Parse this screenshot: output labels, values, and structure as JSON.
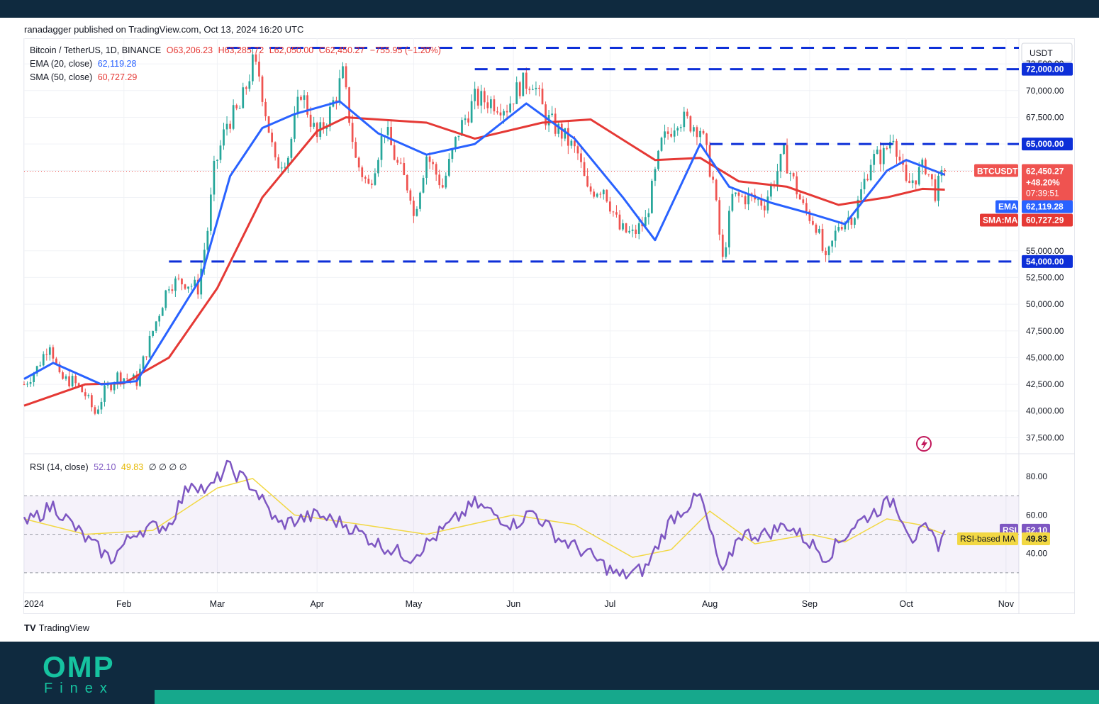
{
  "publisher_line": "ranadagger published on TradingView.com, Oct 13, 2024 16:20 UTC",
  "branding": {
    "tradingview": "TradingView",
    "omp": "OMP",
    "finex": "Finex"
  },
  "legend": {
    "symbol": "Bitcoin / TetherUS, 1D, BINANCE",
    "open": "O63,206.23",
    "high": "H63,285.72",
    "low": "L62,050.00",
    "close": "C62,450.27",
    "change": "−755.95 (−1.20%)",
    "ema_label": "EMA (20, close)",
    "ema_value": "62,119.28",
    "sma_label": "SMA (50, close)",
    "sma_value": "60,727.29",
    "rsi_label": "RSI (14, close)",
    "rsi_value": "52.10",
    "rsi_ma_value": "49.83",
    "rsi_extra": "∅ ∅ ∅ ∅"
  },
  "currency": "USDT",
  "colors": {
    "up": "#26a69a",
    "down": "#ef5350",
    "ema": "#2962ff",
    "sma": "#e53935",
    "level": "#0d2fd8",
    "rsi": "#7e57c2",
    "rsi_ma": "#f2d843"
  },
  "price_axis": {
    "ticks": [
      37500,
      40000,
      42500,
      45000,
      47500,
      50000,
      52500,
      55000,
      67500,
      70000
    ],
    "tick_labels": [
      "37,500.00",
      "40,000.00",
      "42,500.00",
      "45,000.00",
      "47,500.00",
      "50,000.00",
      "52,500.00",
      "55,000.00",
      "67,500.00",
      "70,000.00"
    ],
    "partial_top_label": "72,500.00"
  },
  "badges": {
    "level_72000": "72,000.00",
    "level_65000": "65,000.00",
    "level_54000": "54,000.00",
    "symbol": "BTCUSDT",
    "price": "62,450.27",
    "change_pct": "+48.20%",
    "countdown": "07:39:51",
    "ema_tag": "EMA",
    "ema_value": "62,119.28",
    "sma_tag": "SMA:MA",
    "sma_value": "60,727.29",
    "rsi_tag": "RSI",
    "rsi_value": "52.10",
    "rsi_ma_tag": "RSI-based MA",
    "rsi_ma_value": "49.83"
  },
  "rsi_axis": {
    "ticks": [
      40,
      60,
      80
    ],
    "tick_labels": [
      "40.00",
      "60.00",
      "80.00"
    ]
  },
  "time_axis": {
    "labels": [
      "2024",
      "Feb",
      "Mar",
      "Apr",
      "May",
      "Jun",
      "Jul",
      "Aug",
      "Sep",
      "Oct",
      "Nov"
    ]
  },
  "chart_data": {
    "type": "candlestick",
    "title": "Bitcoin / TetherUS, 1D, BINANCE",
    "x_range": [
      "2024-01-01",
      "2024-11-05"
    ],
    "price_range": [
      36000,
      74500
    ],
    "rsi_range": [
      20,
      90
    ],
    "horizontal_levels": [
      72000,
      65000,
      54000
    ],
    "last_price": 62450.27,
    "close_approx": {
      "dates": [
        "2024-01-01",
        "2024-01-05",
        "2024-01-09",
        "2024-01-12",
        "2024-01-16",
        "2024-01-20",
        "2024-01-23",
        "2024-01-26",
        "2024-01-30",
        "2024-02-05",
        "2024-02-10",
        "2024-02-15",
        "2024-02-20",
        "2024-02-24",
        "2024-02-27",
        "2024-02-29",
        "2024-03-04",
        "2024-03-08",
        "2024-03-12",
        "2024-03-14",
        "2024-03-19",
        "2024-03-23",
        "2024-03-27",
        "2024-04-01",
        "2024-04-05",
        "2024-04-09",
        "2024-04-13",
        "2024-04-17",
        "2024-04-22",
        "2024-04-26",
        "2024-04-30",
        "2024-05-01",
        "2024-05-05",
        "2024-05-10",
        "2024-05-15",
        "2024-05-20",
        "2024-05-25",
        "2024-05-30",
        "2024-06-03",
        "2024-06-07",
        "2024-06-11",
        "2024-06-16",
        "2024-06-21",
        "2024-06-24",
        "2024-06-29",
        "2024-07-04",
        "2024-07-08",
        "2024-07-12",
        "2024-07-17",
        "2024-07-22",
        "2024-07-29",
        "2024-08-02",
        "2024-08-05",
        "2024-08-08",
        "2024-08-13",
        "2024-08-18",
        "2024-08-24",
        "2024-08-30",
        "2024-09-03",
        "2024-09-06",
        "2024-09-10",
        "2024-09-15",
        "2024-09-20",
        "2024-09-24",
        "2024-09-27",
        "2024-10-01",
        "2024-10-04",
        "2024-10-07",
        "2024-10-10",
        "2024-10-13"
      ],
      "close": [
        42500,
        44000,
        46500,
        43000,
        42800,
        41500,
        39800,
        41800,
        43300,
        42800,
        47500,
        52000,
        52100,
        51500,
        57000,
        62500,
        67000,
        68300,
        72500,
        71500,
        63000,
        64000,
        70000,
        65500,
        68000,
        71500,
        63500,
        61000,
        66500,
        63000,
        60500,
        58200,
        64000,
        61000,
        66200,
        69200,
        69000,
        68500,
        70500,
        71000,
        67500,
        66000,
        64000,
        60500,
        61000,
        57000,
        56500,
        57800,
        65000,
        67500,
        66500,
        61500,
        54000,
        60000,
        60000,
        59500,
        64000,
        59000,
        57500,
        53800,
        57500,
        58500,
        63500,
        64000,
        66000,
        61000,
        62000,
        63000,
        60500,
        62450
      ]
    },
    "ema_20_approx": {
      "dates": [
        "2024-01-01",
        "2024-01-10",
        "2024-01-25",
        "2024-02-05",
        "2024-02-25",
        "2024-03-05",
        "2024-03-15",
        "2024-03-25",
        "2024-04-08",
        "2024-04-20",
        "2024-05-05",
        "2024-05-20",
        "2024-06-05",
        "2024-06-20",
        "2024-07-05",
        "2024-07-15",
        "2024-07-29",
        "2024-08-07",
        "2024-08-20",
        "2024-09-01",
        "2024-09-12",
        "2024-09-25",
        "2024-10-01",
        "2024-10-13"
      ],
      "values": [
        43000,
        44500,
        42500,
        42800,
        52500,
        62000,
        66500,
        67800,
        69000,
        66000,
        64000,
        65000,
        68800,
        65500,
        60000,
        56000,
        65000,
        61000,
        59500,
        58500,
        57500,
        62500,
        63500,
        62119.28
      ]
    },
    "sma_50_approx": {
      "dates": [
        "2024-01-01",
        "2024-01-20",
        "2024-02-01",
        "2024-02-15",
        "2024-03-01",
        "2024-03-15",
        "2024-04-01",
        "2024-04-10",
        "2024-05-05",
        "2024-05-20",
        "2024-06-10",
        "2024-06-25",
        "2024-07-15",
        "2024-07-29",
        "2024-08-10",
        "2024-08-25",
        "2024-09-10",
        "2024-09-25",
        "2024-10-06",
        "2024-10-13"
      ],
      "values": [
        40500,
        42500,
        42600,
        45000,
        51500,
        60000,
        66200,
        67500,
        67000,
        65500,
        67000,
        67300,
        63500,
        63700,
        61500,
        61000,
        59300,
        60000,
        60800,
        60727.29
      ]
    },
    "rsi_approx": {
      "dates": [
        "2024-01-01",
        "2024-01-10",
        "2024-01-20",
        "2024-01-28",
        "2024-02-05",
        "2024-02-15",
        "2024-02-22",
        "2024-02-27",
        "2024-03-04",
        "2024-03-12",
        "2024-03-20",
        "2024-04-01",
        "2024-04-10",
        "2024-04-20",
        "2024-04-30",
        "2024-05-10",
        "2024-05-20",
        "2024-06-01",
        "2024-06-07",
        "2024-06-15",
        "2024-06-24",
        "2024-07-04",
        "2024-07-12",
        "2024-07-20",
        "2024-07-29",
        "2024-08-05",
        "2024-08-10",
        "2024-08-18",
        "2024-08-25",
        "2024-09-03",
        "2024-09-06",
        "2024-09-15",
        "2024-09-27",
        "2024-10-03",
        "2024-10-07",
        "2024-10-11",
        "2024-10-13"
      ],
      "values": [
        55,
        65,
        48,
        37,
        52,
        55,
        78,
        72,
        85,
        75,
        55,
        60,
        55,
        45,
        38,
        52,
        66,
        55,
        62,
        48,
        40,
        28,
        32,
        58,
        70,
        28,
        50,
        50,
        55,
        43,
        38,
        55,
        68,
        48,
        52,
        45,
        52.1
      ]
    },
    "rsi_ma_approx": {
      "dates": [
        "2024-01-01",
        "2024-01-20",
        "2024-02-10",
        "2024-03-01",
        "2024-03-12",
        "2024-03-25",
        "2024-04-15",
        "2024-05-05",
        "2024-06-01",
        "2024-06-20",
        "2024-07-08",
        "2024-07-20",
        "2024-08-01",
        "2024-08-15",
        "2024-09-01",
        "2024-09-12",
        "2024-09-25",
        "2024-10-05",
        "2024-10-13"
      ],
      "values": [
        58,
        50,
        52,
        74,
        79,
        60,
        55,
        50,
        60,
        55,
        38,
        42,
        62,
        45,
        50,
        46,
        58,
        55,
        49.83
      ]
    },
    "rsi_bands": [
      70,
      50,
      30
    ]
  }
}
